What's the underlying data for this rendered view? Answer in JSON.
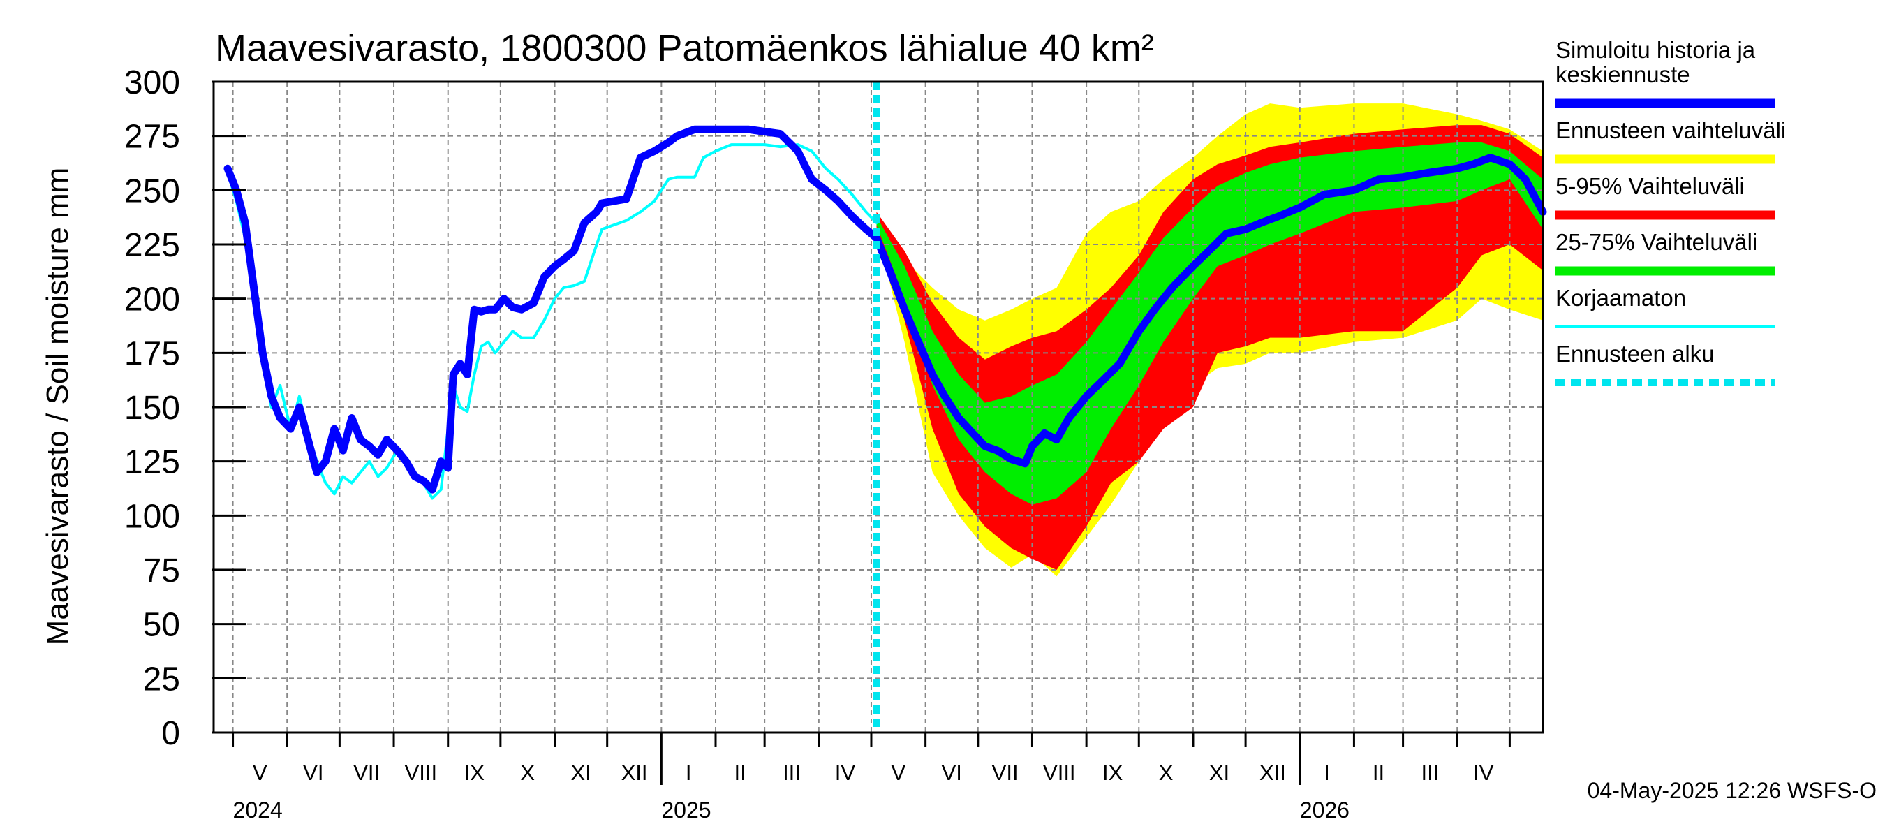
{
  "title": "Maavesivarasto, 1800300 Patomäenkos lähialue 40 km²",
  "footer": "04-May-2025 12:26 WSFS-O",
  "legend": [
    {
      "label": "Simuloitu historia ja keskiennuste",
      "label_lines": [
        "Simuloitu historia ja",
        "keskiennuste"
      ],
      "color": "#0000ff",
      "style": "thick"
    },
    {
      "label": "Ennusteen vaihteluväli",
      "label_lines": [
        "Ennusteen vaihteluväli"
      ],
      "color": "#ffff00",
      "style": "thick"
    },
    {
      "label": "5-95% Vaihteluväli",
      "label_lines": [
        "5-95% Vaihteluväli"
      ],
      "color": "#ff0000",
      "style": "thick"
    },
    {
      "label": "25-75% Vaihteluväli",
      "label_lines": [
        "25-75% Vaihteluväli"
      ],
      "color": "#00ee00",
      "style": "thick"
    },
    {
      "label": "Korjaamaton",
      "label_lines": [
        "Korjaamaton"
      ],
      "color": "#00ffff",
      "style": "thin"
    },
    {
      "label": "Ennusteen alku",
      "label_lines": [
        "Ennusteen alku"
      ],
      "color": "#00e5ee",
      "style": "dashed"
    }
  ],
  "chart_data": {
    "type": "area",
    "title": "Maavesivarasto, 1800300 Patomäenkos lähialue 40 km²",
    "ylabel": "Maavesivarasto / Soil moisture   mm",
    "xlabel": "",
    "ylim": [
      0,
      300
    ],
    "yticks": [
      0,
      25,
      50,
      75,
      100,
      125,
      150,
      175,
      200,
      225,
      250,
      275,
      300
    ],
    "grid": true,
    "legend_position": "right",
    "x_range": [
      "2024-04-20",
      "2026-05-20"
    ],
    "months": [
      {
        "label": "V",
        "start": "2024-05-01"
      },
      {
        "label": "VI",
        "start": "2024-06-01"
      },
      {
        "label": "VII",
        "start": "2024-07-01"
      },
      {
        "label": "VIII",
        "start": "2024-08-01"
      },
      {
        "label": "IX",
        "start": "2024-09-01"
      },
      {
        "label": "X",
        "start": "2024-10-01"
      },
      {
        "label": "XI",
        "start": "2024-11-01"
      },
      {
        "label": "XII",
        "start": "2024-12-01"
      },
      {
        "label": "I",
        "start": "2025-01-01"
      },
      {
        "label": "II",
        "start": "2025-02-01"
      },
      {
        "label": "III",
        "start": "2025-03-01"
      },
      {
        "label": "IV",
        "start": "2025-04-01"
      },
      {
        "label": "V",
        "start": "2025-05-01"
      },
      {
        "label": "VI",
        "start": "2025-06-01"
      },
      {
        "label": "VII",
        "start": "2025-07-01"
      },
      {
        "label": "VIII",
        "start": "2025-08-01"
      },
      {
        "label": "IX",
        "start": "2025-09-01"
      },
      {
        "label": "X",
        "start": "2025-10-01"
      },
      {
        "label": "XI",
        "start": "2025-11-01"
      },
      {
        "label": "XII",
        "start": "2025-12-01"
      },
      {
        "label": "I",
        "start": "2026-01-01"
      },
      {
        "label": "II",
        "start": "2026-02-01"
      },
      {
        "label": "III",
        "start": "2026-03-01"
      },
      {
        "label": "IV",
        "start": "2026-04-01"
      },
      {
        "label": "",
        "start": "2026-05-01"
      }
    ],
    "years": [
      {
        "label": "2024",
        "date": "2024-05-01"
      },
      {
        "label": "2025",
        "date": "2025-01-01"
      },
      {
        "label": "2026",
        "date": "2026-01-01"
      }
    ],
    "forecast_start": "2025-05-04",
    "series": [
      {
        "name": "Ennusteen vaihteluväli",
        "kind": "band",
        "color": "#ffff00",
        "x": [
          "2025-05-04",
          "2025-05-20",
          "2025-06-05",
          "2025-06-20",
          "2025-07-05",
          "2025-07-20",
          "2025-08-01",
          "2025-08-15",
          "2025-09-01",
          "2025-09-15",
          "2025-10-01",
          "2025-10-15",
          "2025-11-01",
          "2025-11-15",
          "2025-12-01",
          "2025-12-15",
          "2026-01-01",
          "2026-02-01",
          "2026-03-01",
          "2026-04-01",
          "2026-04-15",
          "2026-05-01",
          "2026-05-20"
        ],
        "low": [
          232,
          180,
          120,
          100,
          85,
          76,
          82,
          72,
          90,
          105,
          125,
          145,
          160,
          168,
          170,
          175,
          175,
          180,
          182,
          190,
          200,
          195,
          190
        ],
        "high": [
          240,
          218,
          205,
          195,
          190,
          195,
          200,
          205,
          230,
          240,
          245,
          255,
          265,
          275,
          285,
          290,
          288,
          290,
          290,
          285,
          282,
          278,
          268
        ]
      },
      {
        "name": "5-95% Vaihteluväli",
        "kind": "band",
        "color": "#ff0000",
        "x": [
          "2025-05-04",
          "2025-05-20",
          "2025-06-05",
          "2025-06-20",
          "2025-07-05",
          "2025-07-20",
          "2025-08-01",
          "2025-08-15",
          "2025-09-01",
          "2025-09-15",
          "2025-10-01",
          "2025-10-15",
          "2025-11-01",
          "2025-11-15",
          "2025-12-01",
          "2025-12-15",
          "2026-01-01",
          "2026-02-01",
          "2026-03-01",
          "2026-04-01",
          "2026-04-15",
          "2026-05-01",
          "2026-05-20"
        ],
        "low": [
          233,
          190,
          140,
          110,
          95,
          85,
          80,
          75,
          95,
          115,
          125,
          140,
          150,
          175,
          178,
          182,
          182,
          185,
          185,
          205,
          220,
          225,
          213
        ],
        "high": [
          240,
          222,
          198,
          182,
          172,
          178,
          182,
          185,
          195,
          205,
          220,
          240,
          255,
          262,
          266,
          270,
          272,
          276,
          278,
          280,
          280,
          276,
          265
        ]
      },
      {
        "name": "25-75% Vaihteluväli",
        "kind": "band",
        "color": "#00ee00",
        "x": [
          "2025-05-04",
          "2025-05-20",
          "2025-06-05",
          "2025-06-20",
          "2025-07-05",
          "2025-07-20",
          "2025-08-01",
          "2025-08-15",
          "2025-09-01",
          "2025-09-15",
          "2025-10-01",
          "2025-10-15",
          "2025-11-01",
          "2025-11-15",
          "2025-12-01",
          "2025-12-15",
          "2026-01-01",
          "2026-02-01",
          "2026-03-01",
          "2026-04-01",
          "2026-04-15",
          "2026-05-01",
          "2026-05-20"
        ],
        "low": [
          234,
          200,
          160,
          135,
          120,
          110,
          105,
          108,
          120,
          140,
          160,
          180,
          200,
          215,
          220,
          225,
          230,
          240,
          242,
          245,
          250,
          255,
          232
        ],
        "high": [
          238,
          215,
          185,
          165,
          152,
          155,
          160,
          165,
          180,
          195,
          212,
          228,
          242,
          252,
          258,
          262,
          265,
          268,
          270,
          272,
          272,
          268,
          255
        ]
      },
      {
        "name": "Korjaamaton",
        "kind": "line",
        "color": "#00ffff",
        "x": [
          "2024-04-28",
          "2024-05-03",
          "2024-05-08",
          "2024-05-13",
          "2024-05-18",
          "2024-05-23",
          "2024-05-28",
          "2024-06-03",
          "2024-06-08",
          "2024-06-13",
          "2024-06-18",
          "2024-06-23",
          "2024-06-28",
          "2024-07-03",
          "2024-07-08",
          "2024-07-13",
          "2024-07-18",
          "2024-07-23",
          "2024-07-28",
          "2024-08-03",
          "2024-08-08",
          "2024-08-13",
          "2024-08-18",
          "2024-08-23",
          "2024-08-28",
          "2024-09-01",
          "2024-09-04",
          "2024-09-08",
          "2024-09-12",
          "2024-09-16",
          "2024-09-20",
          "2024-09-24",
          "2024-09-28",
          "2024-10-03",
          "2024-10-08",
          "2024-10-13",
          "2024-10-20",
          "2024-10-26",
          "2024-11-01",
          "2024-11-06",
          "2024-11-12",
          "2024-11-18",
          "2024-11-25",
          "2024-11-28",
          "2024-12-05",
          "2024-12-12",
          "2024-12-20",
          "2024-12-28",
          "2025-01-01",
          "2025-01-05",
          "2025-01-10",
          "2025-01-20",
          "2025-01-25",
          "2025-02-01",
          "2025-02-10",
          "2025-02-20",
          "2025-03-01",
          "2025-03-10",
          "2025-03-20",
          "2025-03-28",
          "2025-04-05",
          "2025-04-12",
          "2025-04-20",
          "2025-04-28",
          "2025-05-04"
        ],
        "y": [
          258,
          245,
          228,
          200,
          170,
          150,
          160,
          140,
          155,
          138,
          125,
          115,
          110,
          118,
          115,
          120,
          125,
          118,
          122,
          130,
          125,
          120,
          115,
          108,
          112,
          140,
          160,
          150,
          148,
          165,
          178,
          180,
          175,
          180,
          185,
          182,
          182,
          190,
          200,
          205,
          206,
          208,
          225,
          232,
          234,
          236,
          240,
          245,
          250,
          255,
          256,
          256,
          265,
          268,
          271,
          271,
          271,
          270,
          271,
          268,
          260,
          255,
          248,
          240,
          235
        ]
      },
      {
        "name": "Simuloitu historia ja keskiennuste",
        "kind": "line",
        "color": "#0000ff",
        "x": [
          "2024-04-28",
          "2024-05-03",
          "2024-05-08",
          "2024-05-13",
          "2024-05-18",
          "2024-05-23",
          "2024-05-28",
          "2024-06-03",
          "2024-06-08",
          "2024-06-13",
          "2024-06-18",
          "2024-06-23",
          "2024-06-28",
          "2024-07-03",
          "2024-07-08",
          "2024-07-13",
          "2024-07-18",
          "2024-07-23",
          "2024-07-28",
          "2024-08-03",
          "2024-08-08",
          "2024-08-13",
          "2024-08-18",
          "2024-08-23",
          "2024-08-28",
          "2024-09-01",
          "2024-09-04",
          "2024-09-08",
          "2024-09-12",
          "2024-09-16",
          "2024-09-20",
          "2024-09-24",
          "2024-09-28",
          "2024-10-03",
          "2024-10-08",
          "2024-10-13",
          "2024-10-20",
          "2024-10-26",
          "2024-11-01",
          "2024-11-06",
          "2024-11-12",
          "2024-11-18",
          "2024-11-25",
          "2024-11-28",
          "2024-12-05",
          "2024-12-12",
          "2024-12-20",
          "2024-12-28",
          "2025-01-01",
          "2025-01-05",
          "2025-01-10",
          "2025-01-20",
          "2025-01-25",
          "2025-02-01",
          "2025-02-10",
          "2025-02-20",
          "2025-03-01",
          "2025-03-10",
          "2025-03-20",
          "2025-03-28",
          "2025-04-05",
          "2025-04-12",
          "2025-04-20",
          "2025-04-28",
          "2025-05-04",
          "2025-05-12",
          "2025-05-20",
          "2025-05-28",
          "2025-06-05",
          "2025-06-12",
          "2025-06-20",
          "2025-06-28",
          "2025-07-05",
          "2025-07-12",
          "2025-07-20",
          "2025-07-28",
          "2025-08-01",
          "2025-08-08",
          "2025-08-15",
          "2025-08-22",
          "2025-09-01",
          "2025-09-10",
          "2025-09-20",
          "2025-10-01",
          "2025-10-10",
          "2025-10-20",
          "2025-11-01",
          "2025-11-10",
          "2025-11-20",
          "2025-12-01",
          "2025-12-10",
          "2025-12-20",
          "2026-01-01",
          "2026-01-15",
          "2026-02-01",
          "2026-02-15",
          "2026-03-01",
          "2026-03-15",
          "2026-04-01",
          "2026-04-10",
          "2026-04-20",
          "2026-05-01",
          "2026-05-10",
          "2026-05-20"
        ],
        "y": [
          260,
          250,
          235,
          205,
          175,
          155,
          145,
          140,
          150,
          135,
          120,
          125,
          140,
          130,
          145,
          135,
          132,
          128,
          135,
          130,
          125,
          118,
          116,
          112,
          125,
          122,
          165,
          170,
          165,
          195,
          194,
          195,
          195,
          200,
          196,
          195,
          198,
          210,
          215,
          218,
          222,
          235,
          240,
          244,
          245,
          246,
          265,
          268,
          270,
          272,
          275,
          278,
          278,
          278,
          278,
          278,
          277,
          276,
          268,
          255,
          250,
          245,
          238,
          232,
          228,
          212,
          195,
          180,
          165,
          155,
          145,
          138,
          132,
          130,
          126,
          124,
          132,
          138,
          135,
          145,
          155,
          162,
          170,
          185,
          195,
          205,
          215,
          222,
          230,
          232,
          235,
          238,
          242,
          248,
          250,
          255,
          256,
          258,
          260,
          262,
          265,
          262,
          255,
          240
        ]
      }
    ]
  }
}
